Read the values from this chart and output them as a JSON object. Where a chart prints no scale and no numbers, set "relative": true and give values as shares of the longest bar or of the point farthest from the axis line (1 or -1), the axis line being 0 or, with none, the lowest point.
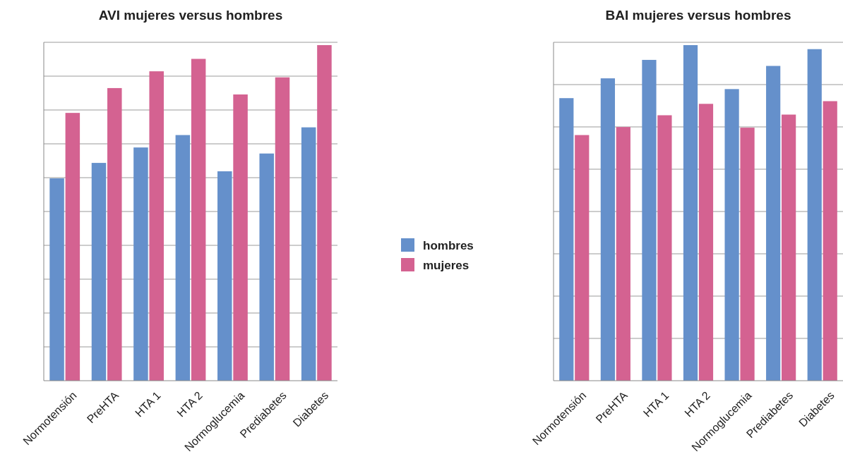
{
  "chart_data": [
    {
      "type": "bar",
      "title": "AVI mujeres versus hombres",
      "categories": [
        "Normotensión",
        "PreHTA",
        "HTA 1",
        "HTA 2",
        "Normoglucemia",
        "Prediabetes",
        "Diabetes"
      ],
      "relative": true,
      "grid": true,
      "legend": "right",
      "series": [
        {
          "name": "hombres",
          "color": "#6590cb",
          "values": [
            0.603,
            0.649,
            0.695,
            0.732,
            0.624,
            0.677,
            0.755
          ]
        },
        {
          "name": "mujeres",
          "color": "#d46291",
          "values": [
            0.798,
            0.872,
            0.922,
            0.959,
            0.853,
            0.904,
            1
          ]
        }
      ]
    },
    {
      "type": "bar",
      "title": "BAI mujeres versus hombres",
      "categories": [
        "Normotensión",
        "PreHTA",
        "HTA 1",
        "HTA 2",
        "Normoglucemia",
        "Prediabetes",
        "Diabetes"
      ],
      "relative": true,
      "grid": true,
      "series": [
        {
          "color": "#6590cb",
          "values": [
            0.842,
            0.901,
            0.956,
            1,
            0.869,
            0.938,
            0.988
          ]
        },
        {
          "color": "#d46291",
          "values": [
            0.732,
            0.756,
            0.791,
            0.825,
            0.754,
            0.793,
            0.833
          ]
        }
      ]
    }
  ]
}
